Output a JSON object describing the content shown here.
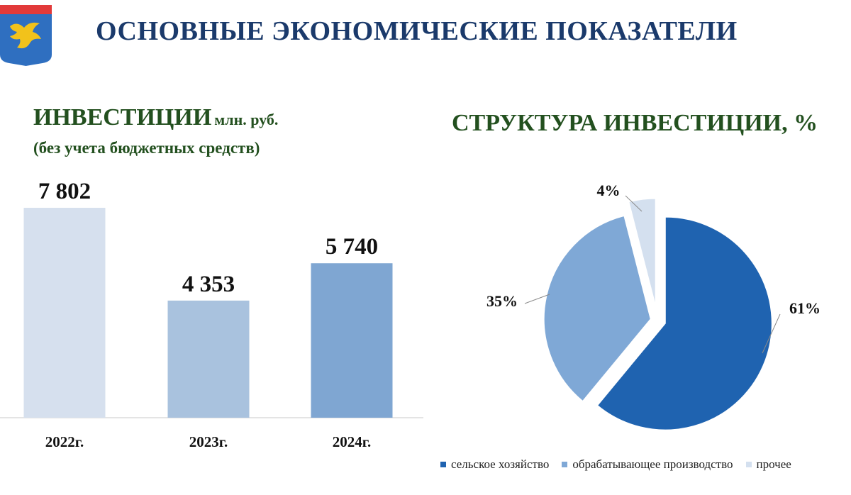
{
  "header": {
    "title": "ОСНОВНЫЕ ЭКОНОМИЧЕСКИЕ ПОКАЗАТЕЛИ",
    "crest_icon": "coat-of-arms-bird-icon"
  },
  "chart_data": [
    {
      "type": "bar",
      "title": "ИНВЕСТИЦИИ",
      "unit": "млн. руб.",
      "subtitle": "(без учета бюджетных средств)",
      "categories": [
        "2022г.",
        "2023г.",
        "2024г."
      ],
      "values": [
        7802,
        4353,
        5740
      ],
      "value_labels": [
        "7 802",
        "4 353",
        "5 740"
      ],
      "colors": [
        "#d6e0ee",
        "#a9c2de",
        "#7fa6d2"
      ],
      "ylim": [
        0,
        7802
      ],
      "grid": false
    },
    {
      "type": "pie",
      "title": "СТРУКТУРА ИНВЕСТИЦИИ, %",
      "categories": [
        "сельское хозяйство",
        "обрабатывающее производство",
        "прочее"
      ],
      "values": [
        61,
        35,
        4
      ],
      "value_labels": [
        "61%",
        "35%",
        "4%"
      ],
      "colors": [
        "#1f63b0",
        "#7fa8d6",
        "#d4e0ef"
      ],
      "legend": "bottom"
    }
  ]
}
